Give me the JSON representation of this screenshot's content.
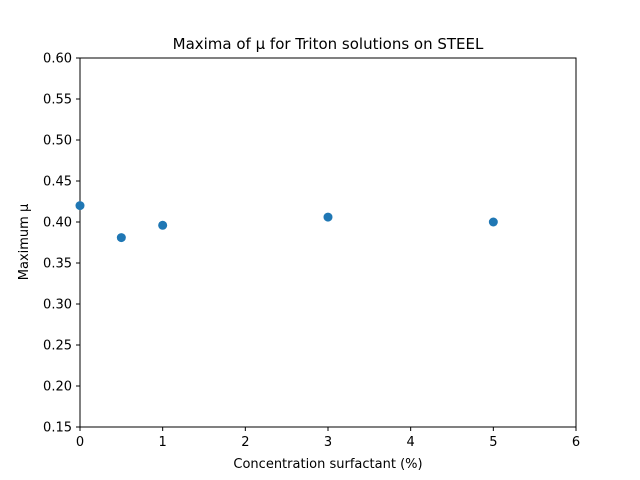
{
  "chart_data": {
    "type": "scatter",
    "title": "Maxima of μ for Triton solutions on STEEL",
    "xlabel": "Concentration surfactant (%)",
    "ylabel": "Maximum μ",
    "xlim": [
      0,
      6
    ],
    "ylim": [
      0.15,
      0.6
    ],
    "xticks": [
      0,
      1,
      2,
      3,
      4,
      5,
      6
    ],
    "yticks": [
      0.15,
      0.2,
      0.25,
      0.3,
      0.35,
      0.4,
      0.45,
      0.5,
      0.55,
      0.6
    ],
    "xtick_labels": [
      "0",
      "1",
      "2",
      "3",
      "4",
      "5",
      "6"
    ],
    "ytick_labels": [
      "0.15",
      "0.20",
      "0.25",
      "0.30",
      "0.35",
      "0.40",
      "0.45",
      "0.50",
      "0.55",
      "0.60"
    ],
    "grid": false,
    "marker_color": "#1f77b4",
    "points": [
      {
        "x": 0.0,
        "y": 0.42
      },
      {
        "x": 0.5,
        "y": 0.381
      },
      {
        "x": 1.0,
        "y": 0.396
      },
      {
        "x": 3.0,
        "y": 0.406
      },
      {
        "x": 5.0,
        "y": 0.4
      }
    ]
  }
}
